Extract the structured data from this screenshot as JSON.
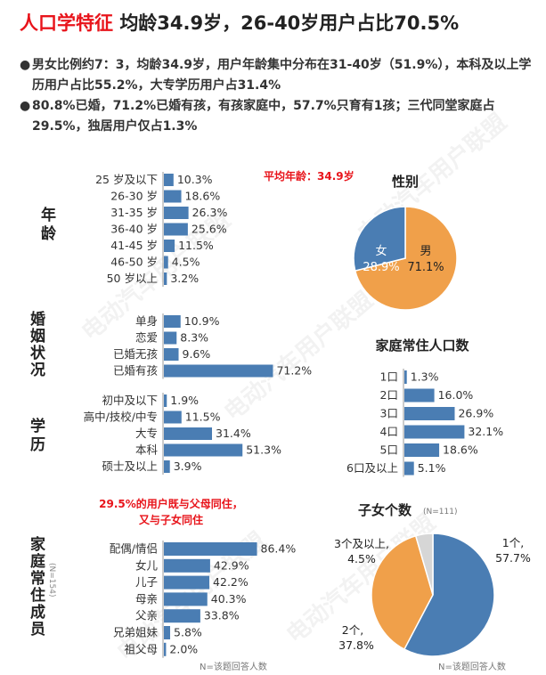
{
  "title": {
    "red": "人口学特征",
    "black": "均龄34.9岁，26-40岁用户占比70.5%"
  },
  "bullets": [
    "男女比例约7：3，均龄34.9岁，用户年龄集中分布在31-40岁（51.9%），本科及以上学历用户占比55.2%，大专学历用户占31.4%",
    "80.8%已婚，71.2%已婚有孩，有孩家庭中，57.7%只育有1孩；三代同堂家庭占29.5%，独居用户仅占1.3%"
  ],
  "watermark": "电动汽车用户联盟",
  "colors": {
    "blue": "#4a7db3",
    "orange": "#f0a04a",
    "grey": "#d6d6d6",
    "red": "#e8141b"
  },
  "chart_data": [
    {
      "type": "bar",
      "orientation": "horizontal",
      "group_label": "年龄",
      "annotation": "平均年龄：34.9岁",
      "categories": [
        "25 岁及以下",
        "26-30 岁",
        "31-35 岁",
        "36-40 岁",
        "41-45 岁",
        "46-50 岁",
        "50 岁以上"
      ],
      "values": [
        10.3,
        18.6,
        26.3,
        25.6,
        11.5,
        4.5,
        3.2
      ],
      "labels": [
        "10.3%",
        "18.6%",
        "26.3%",
        "25.6%",
        "11.5%",
        "4.5%",
        "3.2%"
      ]
    },
    {
      "type": "bar",
      "orientation": "horizontal",
      "group_label": "婚姻状况",
      "categories": [
        "单身",
        "恋爱",
        "已婚无孩",
        "已婚有孩"
      ],
      "values": [
        10.9,
        8.3,
        9.6,
        71.2
      ],
      "labels": [
        "10.9%",
        "8.3%",
        "9.6%",
        "71.2%"
      ]
    },
    {
      "type": "bar",
      "orientation": "horizontal",
      "group_label": "学历",
      "categories": [
        "初中及以下",
        "高中/技校/中专",
        "大专",
        "本科",
        "硕士及以上"
      ],
      "values": [
        1.9,
        11.5,
        31.4,
        51.3,
        3.9
      ],
      "labels": [
        "1.9%",
        "11.5%",
        "31.4%",
        "51.3%",
        "3.9%"
      ]
    },
    {
      "type": "bar",
      "orientation": "horizontal",
      "group_label": "家庭常住成员",
      "sample_note": "(N=154)",
      "annotation": [
        "29.5%的用户既与父母同住，",
        "又与子女同住"
      ],
      "footnote": "N=该题回答人数",
      "categories": [
        "配偶/情侣",
        "女儿",
        "儿子",
        "母亲",
        "父亲",
        "兄弟姐妹",
        "祖父母"
      ],
      "values": [
        86.4,
        42.9,
        42.2,
        40.3,
        33.8,
        5.8,
        2.0
      ],
      "labels": [
        "86.4%",
        "42.9%",
        "42.2%",
        "40.3%",
        "33.8%",
        "5.8%",
        "2.0%"
      ]
    },
    {
      "type": "pie",
      "title": "性别",
      "slices": [
        {
          "name": "男",
          "value": 71.1,
          "label": "71.1%",
          "color": "#f0a04a"
        },
        {
          "name": "女",
          "value": 28.9,
          "label": "28.9%",
          "color": "#4a7db3"
        }
      ]
    },
    {
      "type": "bar",
      "orientation": "horizontal",
      "title": "家庭常住人口数",
      "categories": [
        "1口",
        "2口",
        "3口",
        "4口",
        "5口",
        "6口及以上"
      ],
      "values": [
        1.3,
        16.0,
        26.9,
        32.1,
        18.6,
        5.1
      ],
      "labels": [
        "1.3%",
        "16.0%",
        "26.9%",
        "32.1%",
        "18.6%",
        "5.1%"
      ]
    },
    {
      "type": "pie",
      "title": "子女个数",
      "sample_note": "(N=111)",
      "footnote": "N=该题回答人数",
      "slices": [
        {
          "name": "1个,",
          "value": 57.7,
          "label": "57.7%",
          "color": "#4a7db3"
        },
        {
          "name": "2个,",
          "value": 37.8,
          "label": "37.8%",
          "color": "#f0a04a"
        },
        {
          "name": "3个及以上,",
          "value": 4.5,
          "label": "4.5%",
          "color": "#d6d6d6"
        }
      ]
    }
  ]
}
